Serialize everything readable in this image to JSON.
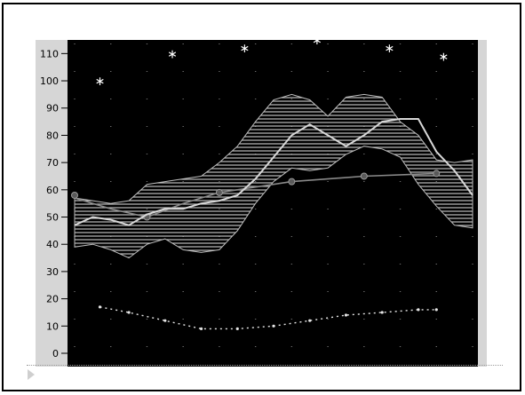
{
  "chart_data": {
    "type": "line",
    "title": "",
    "xlabel": "",
    "ylabel": "",
    "ylim": [
      0,
      115
    ],
    "xlim": [
      0,
      11
    ],
    "y_ticks": [
      0,
      10,
      20,
      30,
      40,
      50,
      60,
      70,
      80,
      90,
      100,
      110
    ],
    "grid": "dotted",
    "colors": {
      "plot_bg": "#000000",
      "axis_bg": "#d6d6d6",
      "band": "#bdbdbd",
      "line": "#d8d8d8",
      "trend": "#8a8a8a"
    },
    "band": {
      "x": [
        0,
        0.5,
        1,
        1.5,
        2,
        2.5,
        3,
        3.5,
        4,
        4.5,
        5,
        5.5,
        6,
        6.5,
        7,
        7.5,
        8,
        8.5,
        9,
        9.5,
        10,
        10.5,
        11
      ],
      "upper": [
        57,
        56,
        55,
        56,
        62,
        63,
        64,
        65,
        70,
        76,
        85,
        93,
        95,
        93,
        87,
        94,
        95,
        94,
        85,
        80,
        71,
        70,
        71
      ],
      "lower": [
        39,
        40,
        38,
        35,
        40,
        42,
        38,
        37,
        38,
        45,
        55,
        63,
        68,
        67,
        68,
        73,
        76,
        75,
        72,
        62,
        54,
        47,
        46
      ]
    },
    "series": [
      {
        "values": [
          [
            0,
            47
          ],
          [
            0.5,
            50
          ],
          [
            1,
            49
          ],
          [
            1.5,
            47
          ],
          [
            2,
            51
          ],
          [
            2.5,
            53
          ],
          [
            3,
            53
          ],
          [
            3.5,
            55
          ],
          [
            4,
            56
          ],
          [
            4.5,
            58
          ],
          [
            5,
            64
          ],
          [
            5.5,
            72
          ],
          [
            6,
            80
          ],
          [
            6.5,
            84
          ],
          [
            7,
            80
          ],
          [
            7.5,
            76
          ],
          [
            8,
            80
          ],
          [
            8.5,
            85
          ],
          [
            9,
            86
          ],
          [
            9.5,
            86
          ],
          [
            10,
            74
          ],
          [
            10.5,
            67
          ],
          [
            11,
            58
          ]
        ]
      },
      {
        "values": [
          [
            0,
            57
          ],
          [
            1,
            53
          ],
          [
            2,
            50
          ],
          [
            3,
            55
          ],
          [
            4,
            59
          ],
          [
            6,
            63
          ],
          [
            8,
            65
          ],
          [
            10,
            66
          ]
        ]
      },
      {
        "values": [
          [
            0,
            58
          ],
          [
            2,
            50
          ],
          [
            4,
            59
          ],
          [
            6,
            63
          ],
          [
            8,
            65
          ],
          [
            10,
            66
          ]
        ]
      },
      {
        "values": [
          [
            0.7,
            17
          ],
          [
            1.5,
            15
          ],
          [
            2.5,
            12
          ],
          [
            3.5,
            9
          ],
          [
            4.5,
            9
          ],
          [
            5.5,
            10
          ],
          [
            6.5,
            12
          ],
          [
            7.5,
            14
          ],
          [
            8.5,
            15
          ],
          [
            9.5,
            16
          ],
          [
            10,
            16
          ]
        ]
      },
      {
        "values": [
          [
            0.7,
            100
          ],
          [
            2.7,
            110
          ],
          [
            4.7,
            112
          ],
          [
            6.7,
            115
          ],
          [
            8.7,
            112
          ],
          [
            10.2,
            109
          ]
        ]
      }
    ]
  },
  "chrome": {
    "frame_color": "#000000"
  }
}
